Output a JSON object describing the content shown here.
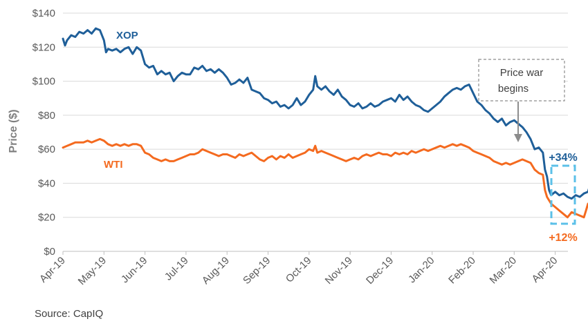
{
  "chart_data": {
    "type": "line",
    "ylabel": "Price ($)",
    "ylim": [
      0,
      140
    ],
    "y_ticks": [
      0,
      20,
      40,
      60,
      80,
      100,
      120,
      140
    ],
    "y_tick_labels": [
      "$0",
      "$20",
      "$40",
      "$60",
      "$80",
      "$100",
      "$120",
      "$140"
    ],
    "x_tick_labels": [
      "Apr-19",
      "May-19",
      "Jun-19",
      "Jul-19",
      "Aug-19",
      "Sep-19",
      "Oct-19",
      "Nov-19",
      "Dec-19",
      "Jan-20",
      "Feb-20",
      "Mar-20",
      "Apr-20"
    ],
    "x_range_months": [
      0,
      12.4
    ],
    "grid": true,
    "series": [
      {
        "name": "XOP",
        "color": "#1f5f99",
        "points": [
          [
            0,
            125
          ],
          [
            0.05,
            121
          ],
          [
            0.1,
            124
          ],
          [
            0.2,
            127
          ],
          [
            0.3,
            126
          ],
          [
            0.4,
            129
          ],
          [
            0.5,
            128
          ],
          [
            0.6,
            130
          ],
          [
            0.7,
            128
          ],
          [
            0.8,
            131
          ],
          [
            0.9,
            130
          ],
          [
            1.0,
            124
          ],
          [
            1.05,
            117
          ],
          [
            1.1,
            119
          ],
          [
            1.2,
            118
          ],
          [
            1.3,
            119
          ],
          [
            1.4,
            117
          ],
          [
            1.5,
            119
          ],
          [
            1.6,
            120
          ],
          [
            1.7,
            116
          ],
          [
            1.8,
            120
          ],
          [
            1.9,
            118
          ],
          [
            2.0,
            110
          ],
          [
            2.1,
            108
          ],
          [
            2.2,
            109
          ],
          [
            2.3,
            104
          ],
          [
            2.4,
            106
          ],
          [
            2.5,
            104
          ],
          [
            2.6,
            105
          ],
          [
            2.7,
            100
          ],
          [
            2.8,
            103
          ],
          [
            2.9,
            105
          ],
          [
            3.0,
            104
          ],
          [
            3.1,
            104
          ],
          [
            3.2,
            108
          ],
          [
            3.3,
            107
          ],
          [
            3.4,
            109
          ],
          [
            3.5,
            106
          ],
          [
            3.6,
            107
          ],
          [
            3.7,
            105
          ],
          [
            3.8,
            107
          ],
          [
            3.9,
            105
          ],
          [
            4.0,
            102
          ],
          [
            4.1,
            98
          ],
          [
            4.2,
            99
          ],
          [
            4.3,
            101
          ],
          [
            4.4,
            99
          ],
          [
            4.5,
            102
          ],
          [
            4.6,
            95
          ],
          [
            4.7,
            94
          ],
          [
            4.8,
            93
          ],
          [
            4.9,
            90
          ],
          [
            5.0,
            89
          ],
          [
            5.1,
            87
          ],
          [
            5.2,
            88
          ],
          [
            5.3,
            85
          ],
          [
            5.4,
            86
          ],
          [
            5.5,
            84
          ],
          [
            5.6,
            86
          ],
          [
            5.7,
            90
          ],
          [
            5.8,
            86
          ],
          [
            5.9,
            88
          ],
          [
            6.0,
            92
          ],
          [
            6.1,
            95
          ],
          [
            6.15,
            103
          ],
          [
            6.2,
            97
          ],
          [
            6.3,
            95
          ],
          [
            6.4,
            97
          ],
          [
            6.5,
            94
          ],
          [
            6.6,
            92
          ],
          [
            6.7,
            95
          ],
          [
            6.8,
            91
          ],
          [
            6.9,
            89
          ],
          [
            7.0,
            86
          ],
          [
            7.1,
            85
          ],
          [
            7.2,
            87
          ],
          [
            7.3,
            84
          ],
          [
            7.4,
            85
          ],
          [
            7.5,
            87
          ],
          [
            7.6,
            85
          ],
          [
            7.7,
            86
          ],
          [
            7.8,
            88
          ],
          [
            7.9,
            89
          ],
          [
            8.0,
            90
          ],
          [
            8.1,
            88
          ],
          [
            8.2,
            92
          ],
          [
            8.3,
            89
          ],
          [
            8.4,
            91
          ],
          [
            8.5,
            88
          ],
          [
            8.6,
            86
          ],
          [
            8.7,
            85
          ],
          [
            8.8,
            83
          ],
          [
            8.9,
            82
          ],
          [
            9.0,
            84
          ],
          [
            9.1,
            86
          ],
          [
            9.2,
            88
          ],
          [
            9.3,
            91
          ],
          [
            9.4,
            93
          ],
          [
            9.5,
            95
          ],
          [
            9.6,
            96
          ],
          [
            9.7,
            95
          ],
          [
            9.8,
            97
          ],
          [
            9.9,
            98
          ],
          [
            10.0,
            93
          ],
          [
            10.1,
            88
          ],
          [
            10.2,
            86
          ],
          [
            10.3,
            83
          ],
          [
            10.4,
            81
          ],
          [
            10.5,
            78
          ],
          [
            10.6,
            76
          ],
          [
            10.7,
            78
          ],
          [
            10.8,
            74
          ],
          [
            10.9,
            76
          ],
          [
            11.0,
            77
          ],
          [
            11.1,
            75
          ],
          [
            11.2,
            73
          ],
          [
            11.3,
            70
          ],
          [
            11.4,
            66
          ],
          [
            11.5,
            60
          ],
          [
            11.6,
            61
          ],
          [
            11.7,
            58
          ],
          [
            11.75,
            48
          ],
          [
            11.8,
            44
          ],
          [
            11.85,
            36
          ],
          [
            11.9,
            33
          ],
          [
            12.0,
            35
          ],
          [
            12.1,
            33
          ],
          [
            12.2,
            34
          ],
          [
            12.3,
            32
          ],
          [
            12.4,
            31
          ],
          [
            12.5,
            33
          ],
          [
            12.6,
            32
          ],
          [
            12.7,
            34
          ],
          [
            12.8,
            35
          ],
          [
            12.85,
            39
          ],
          [
            12.9,
            41
          ],
          [
            12.95,
            40
          ]
        ]
      },
      {
        "name": "WTI",
        "color": "#f46a1f",
        "points": [
          [
            0,
            61
          ],
          [
            0.1,
            62
          ],
          [
            0.2,
            63
          ],
          [
            0.3,
            64
          ],
          [
            0.4,
            64
          ],
          [
            0.5,
            64
          ],
          [
            0.6,
            65
          ],
          [
            0.7,
            64
          ],
          [
            0.8,
            65
          ],
          [
            0.9,
            66
          ],
          [
            1.0,
            65
          ],
          [
            1.1,
            63
          ],
          [
            1.2,
            62
          ],
          [
            1.3,
            63
          ],
          [
            1.4,
            62
          ],
          [
            1.5,
            63
          ],
          [
            1.6,
            62
          ],
          [
            1.7,
            63
          ],
          [
            1.8,
            63
          ],
          [
            1.9,
            62
          ],
          [
            2.0,
            58
          ],
          [
            2.1,
            57
          ],
          [
            2.2,
            55
          ],
          [
            2.3,
            54
          ],
          [
            2.4,
            53
          ],
          [
            2.5,
            54
          ],
          [
            2.6,
            53
          ],
          [
            2.7,
            53
          ],
          [
            2.8,
            54
          ],
          [
            2.9,
            55
          ],
          [
            3.0,
            56
          ],
          [
            3.1,
            57
          ],
          [
            3.2,
            57
          ],
          [
            3.3,
            58
          ],
          [
            3.4,
            60
          ],
          [
            3.5,
            59
          ],
          [
            3.6,
            58
          ],
          [
            3.7,
            57
          ],
          [
            3.8,
            56
          ],
          [
            3.9,
            57
          ],
          [
            4.0,
            57
          ],
          [
            4.1,
            56
          ],
          [
            4.2,
            55
          ],
          [
            4.3,
            57
          ],
          [
            4.4,
            56
          ],
          [
            4.5,
            57
          ],
          [
            4.6,
            58
          ],
          [
            4.7,
            56
          ],
          [
            4.8,
            54
          ],
          [
            4.9,
            53
          ],
          [
            5.0,
            55
          ],
          [
            5.1,
            56
          ],
          [
            5.2,
            54
          ],
          [
            5.3,
            56
          ],
          [
            5.4,
            55
          ],
          [
            5.5,
            57
          ],
          [
            5.6,
            55
          ],
          [
            5.7,
            56
          ],
          [
            5.8,
            57
          ],
          [
            5.9,
            58
          ],
          [
            6.0,
            60
          ],
          [
            6.1,
            59
          ],
          [
            6.15,
            62
          ],
          [
            6.2,
            58
          ],
          [
            6.3,
            59
          ],
          [
            6.4,
            58
          ],
          [
            6.5,
            57
          ],
          [
            6.6,
            56
          ],
          [
            6.7,
            55
          ],
          [
            6.8,
            54
          ],
          [
            6.9,
            53
          ],
          [
            7.0,
            54
          ],
          [
            7.1,
            55
          ],
          [
            7.2,
            54
          ],
          [
            7.3,
            56
          ],
          [
            7.4,
            57
          ],
          [
            7.5,
            56
          ],
          [
            7.6,
            57
          ],
          [
            7.7,
            58
          ],
          [
            7.8,
            57
          ],
          [
            7.9,
            57
          ],
          [
            8.0,
            56
          ],
          [
            8.1,
            58
          ],
          [
            8.2,
            57
          ],
          [
            8.3,
            58
          ],
          [
            8.4,
            57
          ],
          [
            8.5,
            59
          ],
          [
            8.6,
            58
          ],
          [
            8.7,
            59
          ],
          [
            8.8,
            60
          ],
          [
            8.9,
            59
          ],
          [
            9.0,
            60
          ],
          [
            9.1,
            61
          ],
          [
            9.2,
            62
          ],
          [
            9.3,
            61
          ],
          [
            9.4,
            62
          ],
          [
            9.5,
            63
          ],
          [
            9.6,
            62
          ],
          [
            9.7,
            63
          ],
          [
            9.8,
            62
          ],
          [
            9.9,
            61
          ],
          [
            10.0,
            59
          ],
          [
            10.1,
            58
          ],
          [
            10.2,
            57
          ],
          [
            10.3,
            56
          ],
          [
            10.4,
            55
          ],
          [
            10.5,
            53
          ],
          [
            10.6,
            52
          ],
          [
            10.7,
            51
          ],
          [
            10.8,
            52
          ],
          [
            10.9,
            51
          ],
          [
            11.0,
            52
          ],
          [
            11.1,
            53
          ],
          [
            11.2,
            54
          ],
          [
            11.3,
            53
          ],
          [
            11.4,
            52
          ],
          [
            11.5,
            48
          ],
          [
            11.6,
            46
          ],
          [
            11.7,
            45
          ],
          [
            11.75,
            36
          ],
          [
            11.8,
            32
          ],
          [
            11.85,
            30
          ],
          [
            11.9,
            28
          ],
          [
            12.0,
            26
          ],
          [
            12.1,
            24
          ],
          [
            12.2,
            22
          ],
          [
            12.3,
            20
          ],
          [
            12.4,
            23
          ],
          [
            12.5,
            22
          ],
          [
            12.6,
            21
          ],
          [
            12.7,
            20
          ],
          [
            12.75,
            24
          ],
          [
            12.8,
            28
          ],
          [
            12.85,
            25
          ],
          [
            12.9,
            24
          ],
          [
            12.95,
            22
          ]
        ]
      }
    ],
    "annotations": {
      "event_box_lines": [
        "Price war",
        "begins"
      ],
      "event_x": 11.35,
      "change_up": "+34%",
      "change_down": "+12%"
    },
    "colors": {
      "xop": "#1f5f99",
      "wti": "#f46a1f",
      "highlight": "#5bc0e8",
      "arrow": "#8c8c8c",
      "grid": "#d9d9d9",
      "axis": "#bfbfbf",
      "up_text": "#1f5f99",
      "down_text": "#f46a1f"
    }
  },
  "source_text": "Source: CapIQ"
}
